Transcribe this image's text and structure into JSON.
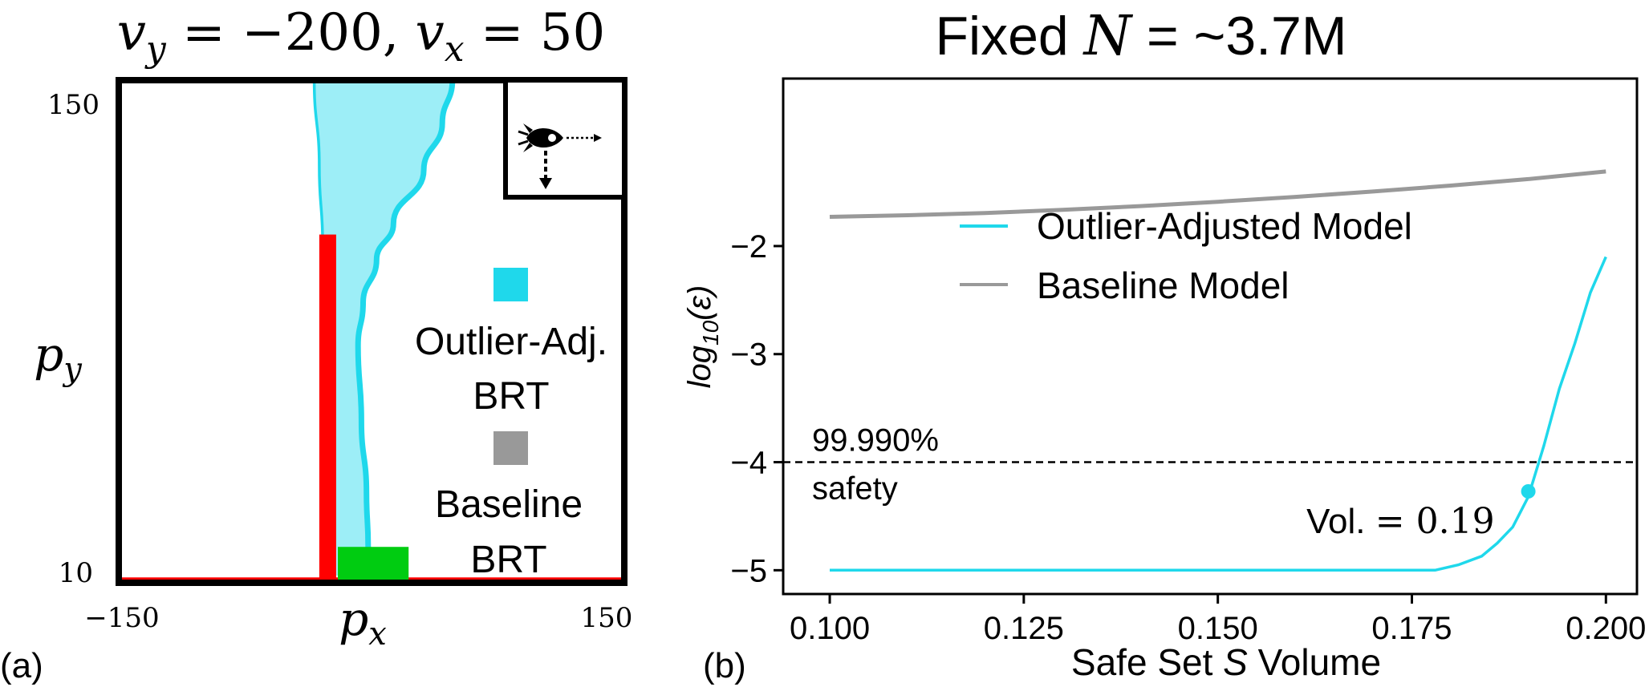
{
  "panel_labels": {
    "a": "(a)",
    "b": "(b)"
  },
  "chart_data": [
    {
      "type": "area",
      "title": "v_y = −200, v_x = 50",
      "title_parts": {
        "vy": "v",
        "vy_sub": "y",
        "eq1": " = −200, ",
        "vx": "v",
        "vx_sub": "x",
        "eq2": " = 50"
      },
      "xlabel": "p",
      "xlabel_sub": "x",
      "ylabel": "p",
      "ylabel_sub": "y",
      "xlim": [
        -150,
        150
      ],
      "ylim": [
        10,
        150
      ],
      "xtick_labels": [
        "−150",
        "150"
      ],
      "ytick_labels": [
        "150",
        "10"
      ],
      "legend": [
        {
          "label_lines": [
            "Outlier-Adj.",
            "BRT"
          ],
          "color": "#1FD8EB"
        },
        {
          "label_lines": [
            "Baseline",
            "BRT"
          ],
          "color": "#999999"
        }
      ],
      "brt_left_boundary": [
        [
          -34,
          150
        ],
        [
          -31,
          126
        ],
        [
          -29,
          104
        ],
        [
          -28,
          80
        ],
        [
          -27,
          56
        ],
        [
          -26,
          32
        ],
        [
          -25,
          12
        ]
      ],
      "brt_right_boundary": [
        [
          48,
          150
        ],
        [
          42,
          138
        ],
        [
          31,
          125
        ],
        [
          13,
          110
        ],
        [
          3,
          100
        ],
        [
          -5,
          88
        ],
        [
          -8,
          76
        ],
        [
          -6,
          55
        ],
        [
          -3,
          35
        ],
        [
          -2,
          20
        ],
        [
          -1,
          12
        ]
      ],
      "colors": {
        "brt_fill": "#9DEEF7",
        "brt_edge": "#1FD8EB",
        "obstacle": "#FF0000",
        "target": "#00CC11",
        "frame": "#000000"
      },
      "obstacles": [
        {
          "name": "wall",
          "x": [
            -31,
            -21
          ],
          "y": [
            10,
            107
          ]
        },
        {
          "name": "ground",
          "x": [
            -150,
            150
          ],
          "y": [
            10,
            11.5
          ]
        }
      ],
      "target": {
        "x": [
          -20,
          22
        ],
        "y": [
          10,
          20
        ]
      },
      "inset": "rocket-icon with velocity arrows"
    },
    {
      "type": "line",
      "title": "Fixed N = ~3.7M",
      "title_parts": {
        "prefix": "Fixed ",
        "var": "N",
        "suffix": " = ~3.7M"
      },
      "xlabel": "Safe Set S Volume",
      "xlabel_parts": {
        "prefix": "Safe Set ",
        "var": "S",
        "suffix": " Volume"
      },
      "ylabel": "log10(ε)",
      "ylabel_parts": {
        "base": "log",
        "sub": "10",
        "arg": "(ε)"
      },
      "xlim": [
        0.094,
        0.204
      ],
      "ylim": [
        -5.22,
        -0.45
      ],
      "xticks": [
        0.1,
        0.125,
        0.15,
        0.175,
        0.2
      ],
      "xtick_labels": [
        "0.100",
        "0.125",
        "0.150",
        "0.175",
        "0.200"
      ],
      "yticks": [
        -5,
        -4,
        -3,
        -2
      ],
      "ytick_labels": [
        "−5",
        "−4",
        "−3",
        "−2"
      ],
      "legend_position": "upper-center",
      "series": [
        {
          "name": "Outlier-Adjusted Model",
          "color": "#1FD8EB",
          "x": [
            0.1,
            0.178,
            0.181,
            0.184,
            0.186,
            0.188,
            0.19,
            0.192,
            0.194,
            0.196,
            0.198,
            0.2
          ],
          "y": [
            -5.0,
            -5.0,
            -4.95,
            -4.87,
            -4.75,
            -4.6,
            -4.32,
            -3.85,
            -3.32,
            -2.9,
            -2.43,
            -2.1
          ]
        },
        {
          "name": "Baseline Model",
          "color": "#999999",
          "x": [
            0.1,
            0.11,
            0.12,
            0.13,
            0.14,
            0.15,
            0.16,
            0.17,
            0.18,
            0.19,
            0.2
          ],
          "y": [
            -1.73,
            -1.715,
            -1.695,
            -1.665,
            -1.63,
            -1.59,
            -1.545,
            -1.495,
            -1.44,
            -1.38,
            -1.31
          ]
        }
      ],
      "reference_line": {
        "y": -4,
        "style": "dashed",
        "color": "#000000",
        "label_top": "99.990%",
        "label_bottom": "safety"
      },
      "marker": {
        "x": 0.19,
        "y": -4.27,
        "color": "#1FD8EB",
        "label_prefix": "Vol. ",
        "label_value": "= 0.19"
      }
    }
  ]
}
